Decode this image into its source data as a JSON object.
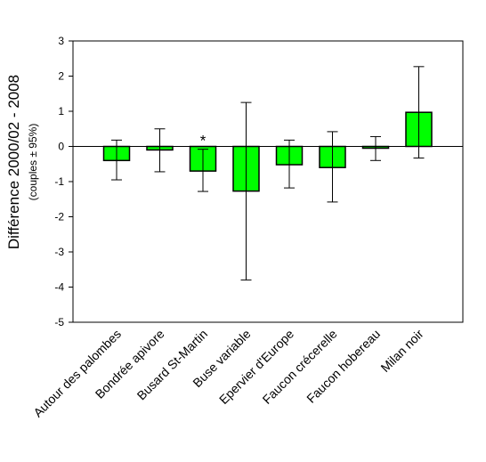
{
  "chart_data": {
    "type": "bar",
    "ylabel": "Différence 2000/02 - 2008",
    "ylabel_sub": "(couples ± 95%)",
    "ylim": [
      -5,
      3
    ],
    "yticks": [
      3,
      2,
      1,
      0,
      -1,
      -2,
      -3,
      -4,
      -5
    ],
    "ytick_labels": [
      "3",
      "2",
      "1",
      "0",
      "-1",
      "-2",
      "-3",
      "-4",
      "-5"
    ],
    "bar_color": "#00ff00",
    "categories": [
      "Autour des palombes",
      "Bondrée apivore",
      "Busard St-Martin",
      "Buse variable",
      "Epervier d'Europe",
      "Faucon crécerelle",
      "Faucon hobereau",
      "Milan noir"
    ],
    "values": [
      -0.4,
      -0.1,
      -0.7,
      -1.27,
      -0.52,
      -0.6,
      -0.05,
      0.97
    ],
    "error_low": [
      -0.95,
      -0.72,
      -1.28,
      -3.8,
      -1.18,
      -1.58,
      -0.4,
      -0.33
    ],
    "error_high": [
      0.18,
      0.5,
      -0.08,
      1.25,
      0.18,
      0.42,
      0.28,
      2.27
    ],
    "annotations": [
      {
        "category": "Busard St-Martin",
        "text": "*"
      }
    ],
    "grid": false,
    "legend": "none"
  }
}
